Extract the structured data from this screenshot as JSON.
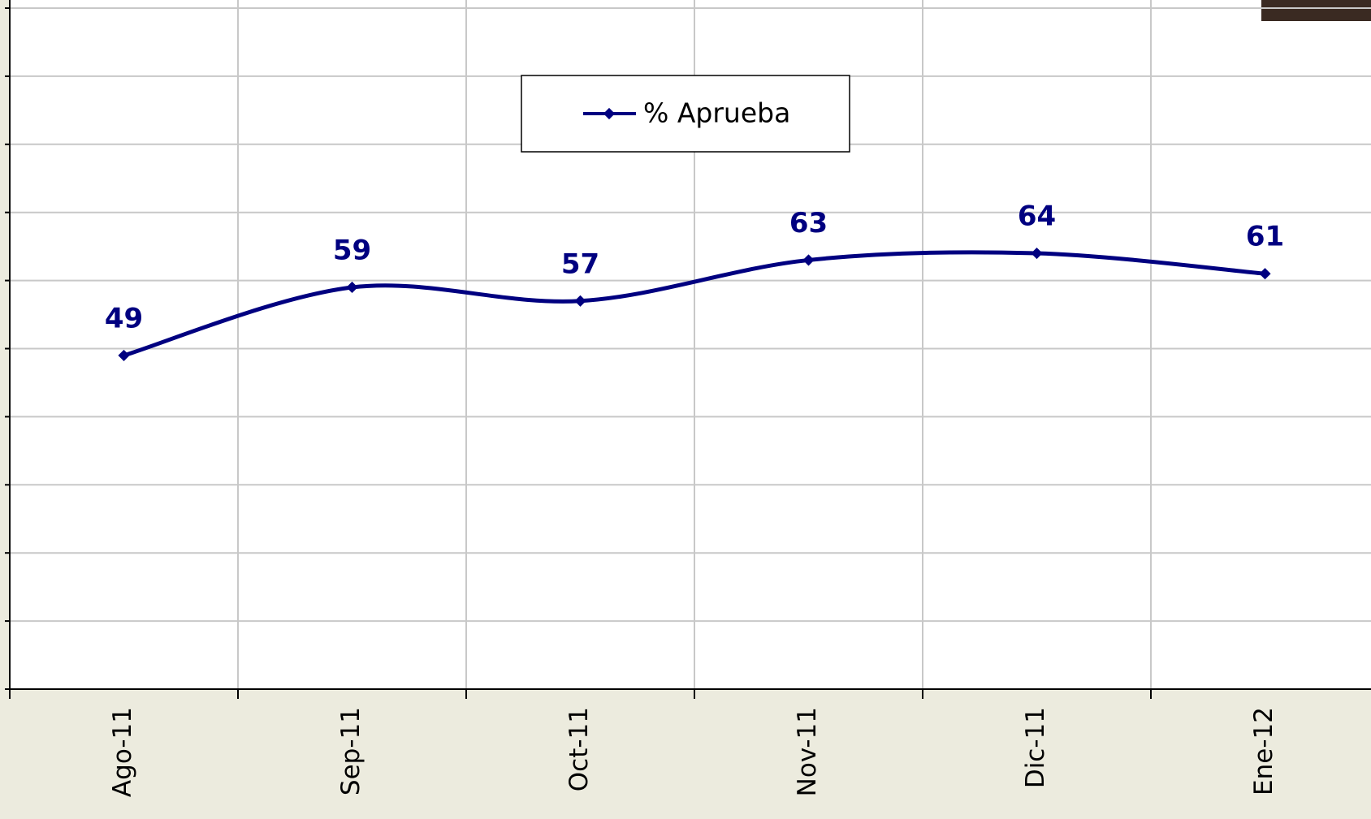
{
  "chart_data": {
    "type": "line",
    "categories": [
      "Ago-11",
      "Sep-11",
      "Oct-11",
      "Nov-11",
      "Dic-11",
      "Ene-12"
    ],
    "series": [
      {
        "name": "% Aprueba",
        "color": "#000080",
        "values": [
          49,
          59,
          57,
          63,
          64,
          61
        ]
      }
    ],
    "ylim": [
      0,
      100
    ],
    "yticks": [
      0,
      10,
      20,
      30,
      40,
      50,
      60,
      70,
      80,
      90,
      100
    ],
    "grid": true,
    "legend": "top"
  }
}
